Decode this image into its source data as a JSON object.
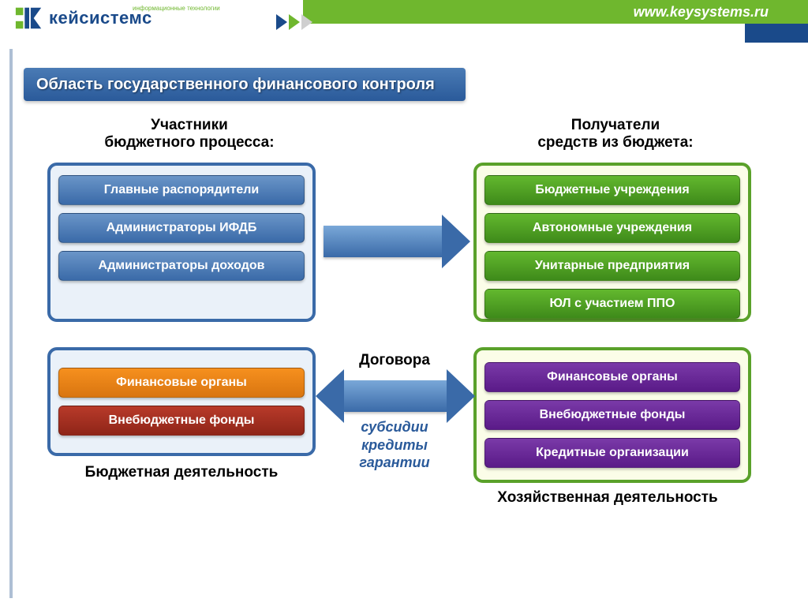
{
  "header": {
    "logo_text": "кейсистемс",
    "logo_sub": "информационные технологии",
    "url": "www.keysystems.ru",
    "logo_colors": {
      "blue": "#1a4a8a",
      "green": "#6fb72e"
    }
  },
  "title": "Область государственного финансового контроля",
  "columns": {
    "left_heading": "Участники\nбюджетного процесса:",
    "right_heading": "Получатели\nсредств из бюджета:"
  },
  "panels": {
    "p1": {
      "border_color": "#3a6aa8",
      "bg_color": "#eaf1f9",
      "items": [
        {
          "label": "Главные распорядители",
          "color": "blue"
        },
        {
          "label": "Администраторы ИФДБ",
          "color": "blue"
        },
        {
          "label": "Администраторы доходов",
          "color": "blue"
        }
      ]
    },
    "p2": {
      "border_color": "#5aa12a",
      "bg_color": "#fbfde8",
      "items": [
        {
          "label": "Бюджетные учреждения",
          "color": "green"
        },
        {
          "label": "Автономные учреждения",
          "color": "green"
        },
        {
          "label": "Унитарные предприятия",
          "color": "green"
        },
        {
          "label": "ЮЛ с участием ППО",
          "color": "green"
        }
      ]
    },
    "p3": {
      "border_color": "#3a6aa8",
      "bg_color": "#eaf1f9",
      "items": [
        {
          "label": "Финансовые органы",
          "color": "orange"
        },
        {
          "label": "Внебюджетные фонды",
          "color": "red"
        }
      ]
    },
    "p4": {
      "border_color": "#5aa12a",
      "bg_color": "#fbfde8",
      "items": [
        {
          "label": "Финансовые органы",
          "color": "purple"
        },
        {
          "label": "Внебюджетные фонды",
          "color": "purple"
        },
        {
          "label": "Кредитные организации",
          "color": "purple"
        }
      ]
    }
  },
  "center": {
    "top_label": "Договора",
    "bottom_label": "субсидии\nкредиты\nгарантии"
  },
  "footer": {
    "left": "Бюджетная деятельность",
    "right": "Хозяйственная деятельность"
  },
  "colors": {
    "item_blue": "#3a6aa8",
    "item_green": "#3e8a1a",
    "item_orange": "#d97510",
    "item_red": "#8f2518",
    "item_purple": "#5a1a88",
    "arrow": "#3a6aa8",
    "title_bar": "#2a5a9a"
  }
}
